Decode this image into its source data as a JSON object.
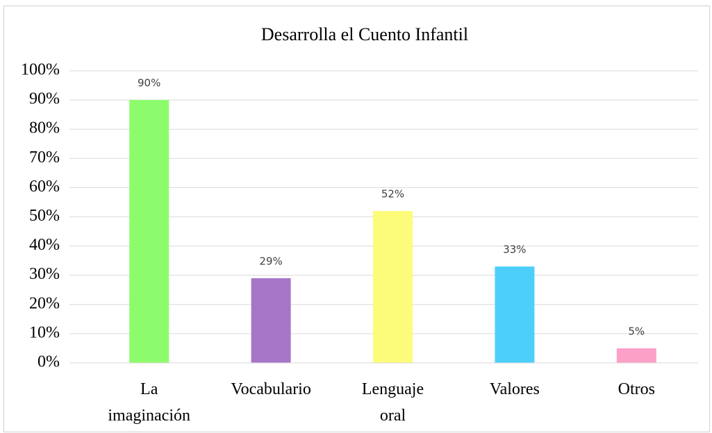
{
  "chart_data": {
    "type": "bar",
    "title": "Desarrolla el Cuento Infantil",
    "categories": [
      "La imaginación",
      "Vocabulario",
      "Lenguaje oral",
      "Valores",
      "Otros"
    ],
    "values": [
      90,
      29,
      52,
      33,
      5
    ],
    "value_labels": [
      "90%",
      "29%",
      "52%",
      "33%",
      "5%"
    ],
    "colors": [
      "#8cfc6c",
      "#a675c8",
      "#fdfc7a",
      "#4dcffc",
      "#fca0c8"
    ],
    "ylim": [
      0,
      100
    ],
    "yticks": [
      {
        "value": 0,
        "label": "0%"
      },
      {
        "value": 10,
        "label": "10%"
      },
      {
        "value": 20,
        "label": "20%"
      },
      {
        "value": 30,
        "label": "30%"
      },
      {
        "value": 40,
        "label": "40%"
      },
      {
        "value": 50,
        "label": "50%"
      },
      {
        "value": 60,
        "label": "60%"
      },
      {
        "value": 70,
        "label": "70%"
      },
      {
        "value": 80,
        "label": "80%"
      },
      {
        "value": 90,
        "label": "90%"
      },
      {
        "value": 100,
        "label": "100%"
      }
    ],
    "grid": true
  }
}
